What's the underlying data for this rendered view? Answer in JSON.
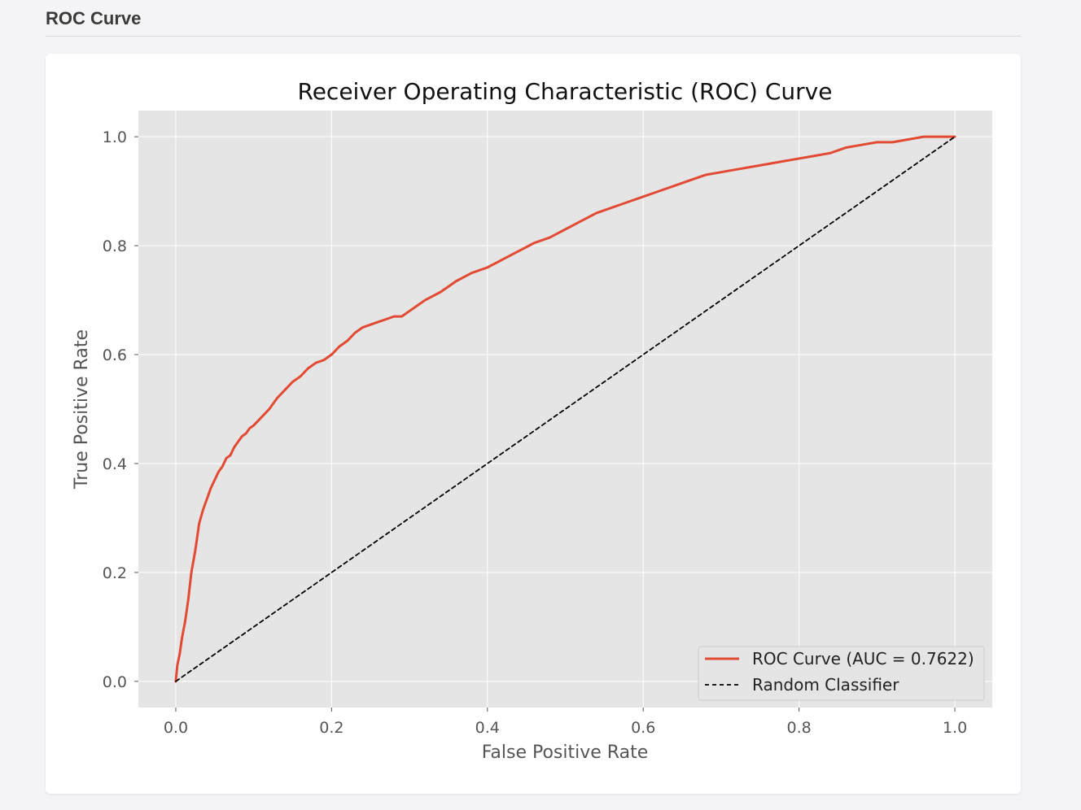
{
  "section": {
    "title": "ROC Curve"
  },
  "chart_data": {
    "type": "line",
    "title": "Receiver Operating Characteristic (ROC) Curve",
    "xlabel": "False Positive Rate",
    "ylabel": "True Positive Rate",
    "xlim": [
      -0.048,
      1.048
    ],
    "ylim": [
      -0.048,
      1.048
    ],
    "xticks": [
      0.0,
      0.2,
      0.4,
      0.6,
      0.8,
      1.0
    ],
    "yticks": [
      0.0,
      0.2,
      0.4,
      0.6,
      0.8,
      1.0
    ],
    "xtick_labels": [
      "0.0",
      "0.2",
      "0.4",
      "0.6",
      "0.8",
      "1.0"
    ],
    "ytick_labels": [
      "0.0",
      "0.2",
      "0.4",
      "0.6",
      "0.8",
      "1.0"
    ],
    "grid": true,
    "legend_position": "bottom-right",
    "series": [
      {
        "name": "ROC Curve (AUC = 0.7622)",
        "color": "#E24A33",
        "style": "solid",
        "x": [
          0.0,
          0.002,
          0.005,
          0.008,
          0.012,
          0.016,
          0.02,
          0.025,
          0.03,
          0.035,
          0.04,
          0.045,
          0.05,
          0.055,
          0.06,
          0.065,
          0.07,
          0.075,
          0.08,
          0.085,
          0.09,
          0.095,
          0.1,
          0.11,
          0.12,
          0.13,
          0.14,
          0.15,
          0.16,
          0.17,
          0.18,
          0.19,
          0.2,
          0.21,
          0.22,
          0.23,
          0.24,
          0.25,
          0.26,
          0.27,
          0.28,
          0.29,
          0.3,
          0.32,
          0.34,
          0.36,
          0.38,
          0.4,
          0.42,
          0.44,
          0.46,
          0.48,
          0.5,
          0.52,
          0.54,
          0.56,
          0.58,
          0.6,
          0.62,
          0.64,
          0.66,
          0.68,
          0.7,
          0.72,
          0.74,
          0.76,
          0.78,
          0.8,
          0.82,
          0.84,
          0.86,
          0.88,
          0.9,
          0.92,
          0.94,
          0.96,
          0.98,
          1.0
        ],
        "y": [
          0.0,
          0.03,
          0.05,
          0.08,
          0.11,
          0.15,
          0.2,
          0.24,
          0.29,
          0.315,
          0.335,
          0.355,
          0.37,
          0.385,
          0.395,
          0.41,
          0.415,
          0.43,
          0.44,
          0.45,
          0.455,
          0.465,
          0.47,
          0.485,
          0.5,
          0.52,
          0.535,
          0.55,
          0.56,
          0.575,
          0.585,
          0.59,
          0.6,
          0.615,
          0.625,
          0.64,
          0.65,
          0.655,
          0.66,
          0.665,
          0.67,
          0.67,
          0.68,
          0.7,
          0.715,
          0.735,
          0.75,
          0.76,
          0.775,
          0.79,
          0.805,
          0.815,
          0.83,
          0.845,
          0.86,
          0.87,
          0.88,
          0.89,
          0.9,
          0.91,
          0.92,
          0.93,
          0.935,
          0.94,
          0.945,
          0.95,
          0.955,
          0.96,
          0.965,
          0.97,
          0.98,
          0.985,
          0.99,
          0.99,
          0.995,
          1.0,
          1.0,
          1.0
        ]
      },
      {
        "name": "Random Classifier",
        "color": "#000000",
        "style": "dashed",
        "x": [
          0.0,
          1.0
        ],
        "y": [
          0.0,
          1.0
        ]
      }
    ]
  }
}
